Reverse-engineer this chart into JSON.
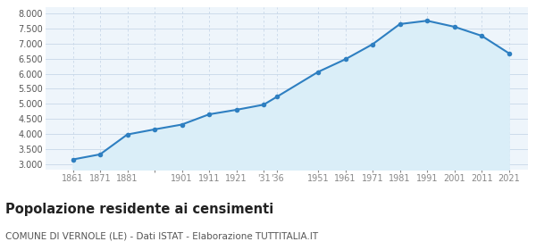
{
  "years": [
    1861,
    1871,
    1881,
    1891,
    1901,
    1911,
    1921,
    1931,
    1936,
    1951,
    1961,
    1971,
    1981,
    1991,
    2001,
    2011,
    2021
  ],
  "population": [
    3150,
    3320,
    3980,
    4150,
    4310,
    4650,
    4800,
    4970,
    5240,
    6060,
    6480,
    6980,
    7650,
    7760,
    7560,
    7260,
    6680
  ],
  "line_color": "#2e7fc1",
  "fill_color": "#daeef8",
  "marker_color": "#2e7fc1",
  "grid_color_h": "#c8d8e8",
  "grid_color_v": "#c8d8e8",
  "bg_color": "#eef5fb",
  "ylim": [
    2800,
    8200
  ],
  "yticks": [
    3000,
    3500,
    4000,
    4500,
    5000,
    5500,
    6000,
    6500,
    7000,
    7500,
    8000
  ],
  "xlim_min": 1851,
  "xlim_max": 2028,
  "x_tick_positions": [
    1861,
    1871,
    1881,
    1891,
    1901,
    1911,
    1921,
    1931,
    1936,
    1951,
    1961,
    1971,
    1981,
    1991,
    2001,
    2011,
    2021
  ],
  "x_tick_labels": [
    "1861",
    "1871",
    "1881",
    "",
    "1901",
    "1911",
    "1921",
    "'31",
    "'36",
    "1951",
    "1961",
    "1971",
    "1981",
    "1991",
    "2001",
    "2011",
    "2021"
  ],
  "title": "Popolazione residente ai censimenti",
  "subtitle": "COMUNE DI VERNOLE (LE) - Dati ISTAT - Elaborazione TUTTITALIA.IT",
  "title_fontsize": 10.5,
  "subtitle_fontsize": 7.5
}
